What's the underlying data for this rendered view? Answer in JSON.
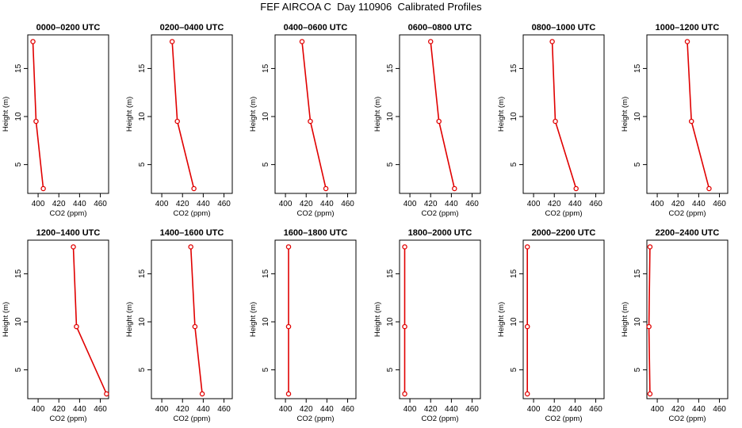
{
  "title": "FEF AIRCOA C  Day 110906  Calibrated Profiles",
  "chart_data": [
    {
      "type": "line",
      "title": "0000–0200 UTC",
      "xlabel": "CO2 (ppm)",
      "ylabel": "Height (m)",
      "xlim": [
        390,
        468
      ],
      "ylim": [
        2,
        18.5
      ],
      "xticks": [
        "400",
        "420",
        "440",
        "460"
      ],
      "yticks": [
        "5",
        "10",
        "15"
      ],
      "series": [
        {
          "x": [
            395,
            398,
            405
          ],
          "y": [
            17.8,
            9.5,
            2.5
          ]
        }
      ]
    },
    {
      "type": "line",
      "title": "0200–0400 UTC",
      "xlabel": "CO2 (ppm)",
      "ylabel": "Height (m)",
      "xlim": [
        390,
        468
      ],
      "ylim": [
        2,
        18.5
      ],
      "xticks": [
        "400",
        "420",
        "440",
        "460"
      ],
      "yticks": [
        "5",
        "10",
        "15"
      ],
      "series": [
        {
          "x": [
            410,
            415,
            431
          ],
          "y": [
            17.8,
            9.5,
            2.5
          ]
        }
      ]
    },
    {
      "type": "line",
      "title": "0400–0600 UTC",
      "xlabel": "CO2 (ppm)",
      "ylabel": "Height (m)",
      "xlim": [
        390,
        468
      ],
      "ylim": [
        2,
        18.5
      ],
      "xticks": [
        "400",
        "420",
        "440",
        "460"
      ],
      "yticks": [
        "5",
        "10",
        "15"
      ],
      "series": [
        {
          "x": [
            416,
            424,
            439
          ],
          "y": [
            17.8,
            9.5,
            2.5
          ]
        }
      ]
    },
    {
      "type": "line",
      "title": "0600–0800 UTC",
      "xlabel": "CO2 (ppm)",
      "ylabel": "Height (m)",
      "xlim": [
        390,
        468
      ],
      "ylim": [
        2,
        18.5
      ],
      "xticks": [
        "400",
        "420",
        "440",
        "460"
      ],
      "yticks": [
        "5",
        "10",
        "15"
      ],
      "series": [
        {
          "x": [
            420,
            428,
            443
          ],
          "y": [
            17.8,
            9.5,
            2.5
          ]
        }
      ]
    },
    {
      "type": "line",
      "title": "0800–1000 UTC",
      "xlabel": "CO2 (ppm)",
      "ylabel": "Height (m)",
      "xlim": [
        390,
        468
      ],
      "ylim": [
        2,
        18.5
      ],
      "xticks": [
        "400",
        "420",
        "440",
        "460"
      ],
      "yticks": [
        "5",
        "10",
        "15"
      ],
      "series": [
        {
          "x": [
            418,
            421,
            441
          ],
          "y": [
            17.8,
            9.5,
            2.5
          ]
        }
      ]
    },
    {
      "type": "line",
      "title": "1000–1200 UTC",
      "xlabel": "CO2 (ppm)",
      "ylabel": "Height (m)",
      "xlim": [
        390,
        468
      ],
      "ylim": [
        2,
        18.5
      ],
      "xticks": [
        "400",
        "420",
        "440",
        "460"
      ],
      "yticks": [
        "5",
        "10",
        "15"
      ],
      "series": [
        {
          "x": [
            429,
            433,
            450
          ],
          "y": [
            17.8,
            9.5,
            2.5
          ]
        }
      ]
    },
    {
      "type": "line",
      "title": "1200–1400 UTC",
      "xlabel": "CO2 (ppm)",
      "ylabel": "Height (m)",
      "xlim": [
        390,
        468
      ],
      "ylim": [
        2,
        18.5
      ],
      "xticks": [
        "400",
        "420",
        "440",
        "460"
      ],
      "yticks": [
        "5",
        "10",
        "15"
      ],
      "series": [
        {
          "x": [
            434,
            437,
            466
          ],
          "y": [
            17.8,
            9.5,
            2.5
          ]
        }
      ]
    },
    {
      "type": "line",
      "title": "1400–1600 UTC",
      "xlabel": "CO2 (ppm)",
      "ylabel": "Height (m)",
      "xlim": [
        390,
        468
      ],
      "ylim": [
        2,
        18.5
      ],
      "xticks": [
        "400",
        "420",
        "440",
        "460"
      ],
      "yticks": [
        "5",
        "10",
        "15"
      ],
      "series": [
        {
          "x": [
            428,
            432,
            439
          ],
          "y": [
            17.8,
            9.5,
            2.5
          ]
        }
      ]
    },
    {
      "type": "line",
      "title": "1600–1800 UTC",
      "xlabel": "CO2 (ppm)",
      "ylabel": "Height (m)",
      "xlim": [
        390,
        468
      ],
      "ylim": [
        2,
        18.5
      ],
      "xticks": [
        "400",
        "420",
        "440",
        "460"
      ],
      "yticks": [
        "5",
        "10",
        "15"
      ],
      "series": [
        {
          "x": [
            403,
            403,
            403
          ],
          "y": [
            17.8,
            9.5,
            2.5
          ]
        }
      ]
    },
    {
      "type": "line",
      "title": "1800–2000 UTC",
      "xlabel": "CO2 (ppm)",
      "ylabel": "Height (m)",
      "xlim": [
        390,
        468
      ],
      "ylim": [
        2,
        18.5
      ],
      "xticks": [
        "400",
        "420",
        "440",
        "460"
      ],
      "yticks": [
        "5",
        "10",
        "15"
      ],
      "series": [
        {
          "x": [
            395,
            395,
            395
          ],
          "y": [
            17.8,
            9.5,
            2.5
          ]
        }
      ]
    },
    {
      "type": "line",
      "title": "2000–2200 UTC",
      "xlabel": "CO2 (ppm)",
      "ylabel": "Height (m)",
      "xlim": [
        390,
        468
      ],
      "ylim": [
        2,
        18.5
      ],
      "xticks": [
        "400",
        "420",
        "440",
        "460"
      ],
      "yticks": [
        "5",
        "10",
        "15"
      ],
      "series": [
        {
          "x": [
            394,
            394,
            394
          ],
          "y": [
            17.8,
            9.5,
            2.5
          ]
        }
      ]
    },
    {
      "type": "line",
      "title": "2200–2400 UTC",
      "xlabel": "CO2 (ppm)",
      "ylabel": "Height (m)",
      "xlim": [
        390,
        468
      ],
      "ylim": [
        2,
        18.5
      ],
      "xticks": [
        "400",
        "420",
        "440",
        "460"
      ],
      "yticks": [
        "5",
        "10",
        "15"
      ],
      "series": [
        {
          "x": [
            393,
            392,
            393
          ],
          "y": [
            17.8,
            9.5,
            2.5
          ]
        }
      ]
    }
  ],
  "colors": {
    "series": "#e00000",
    "marker": "#e00000",
    "axis": "#000000"
  }
}
